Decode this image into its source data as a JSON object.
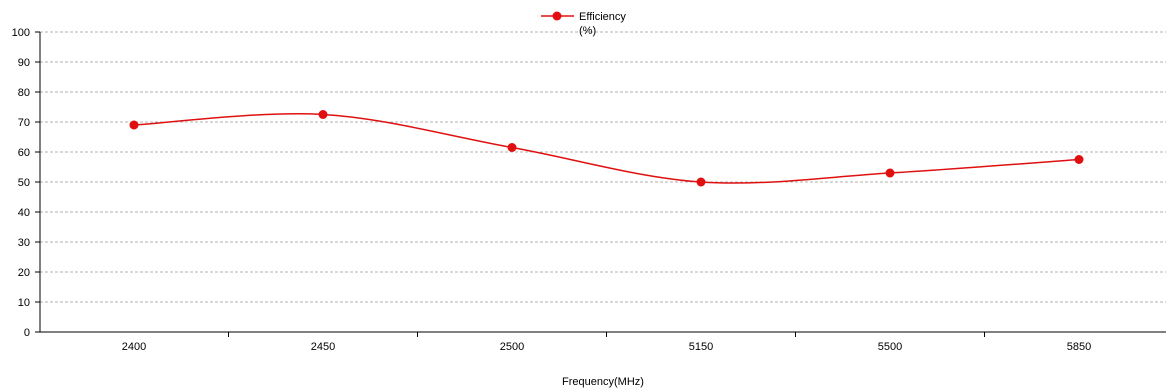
{
  "chart_data": {
    "type": "line",
    "title": "",
    "xlabel": "Frequency(MHz)",
    "ylabel": "",
    "categories": [
      "2400",
      "2450",
      "2500",
      "5150",
      "5500",
      "5850"
    ],
    "ylim": [
      0,
      100
    ],
    "yticks": [
      0,
      10,
      20,
      30,
      40,
      50,
      60,
      70,
      80,
      90,
      100
    ],
    "grid": true,
    "legend": "top-center",
    "smooth": true,
    "series": [
      {
        "name": "Efficiency (%)",
        "legend_lines": [
          "Efficiency",
          "(%)"
        ],
        "values": [
          69,
          72.5,
          61.5,
          50,
          53,
          57.5
        ],
        "color": "#e01010"
      }
    ]
  }
}
